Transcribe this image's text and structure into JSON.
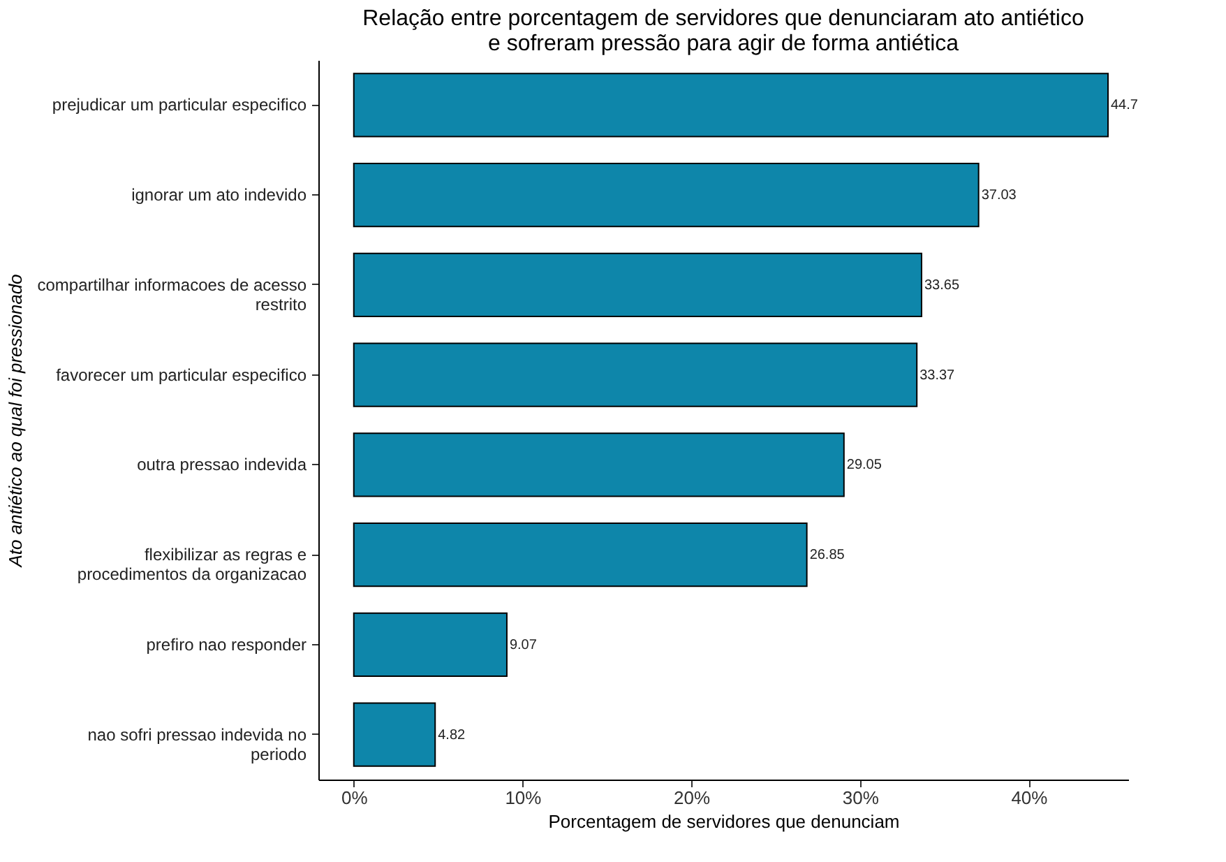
{
  "chart_data": {
    "type": "bar",
    "orientation": "horizontal",
    "title": [
      "Relação entre porcentagem de servidores que denunciaram ato antiético",
      "e sofreram pressão para agir de forma antiética"
    ],
    "xlabel": "Porcentagem de servidores que denunciam",
    "ylabel": "Ato antiético ao qual foi pressionado",
    "categories": [
      "prejudicar um particular especifico",
      "ignorar um ato indevido",
      "compartilhar informacoes de acesso\nrestrito",
      "favorecer um particular especifico",
      "outra pressao indevida",
      "flexibilizar as regras e\nprocedimentos da organizacao",
      "prefiro nao responder",
      "nao sofri pressao indevida no\nperiodo"
    ],
    "values": [
      44.7,
      37.03,
      33.65,
      33.37,
      29.05,
      26.85,
      9.07,
      4.82
    ],
    "color": "#0e86aa",
    "xlim": [
      -2.1,
      45.9
    ],
    "xticks": [
      {
        "value": 0,
        "label": "0%"
      },
      {
        "value": 10,
        "label": "10%"
      },
      {
        "value": 20,
        "label": "20%"
      },
      {
        "value": 30,
        "label": "30%"
      },
      {
        "value": 40,
        "label": "40%"
      }
    ],
    "data_labels": true
  }
}
